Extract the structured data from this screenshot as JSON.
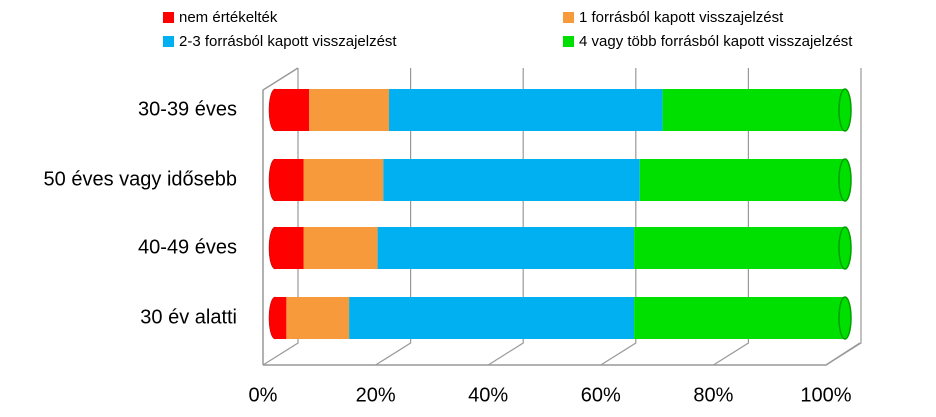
{
  "chart_data": {
    "type": "stacked-bar-horizontal",
    "categories": [
      "30-39 éves",
      "50 éves vagy idősebb",
      "40-49 éves",
      "30 év alatti"
    ],
    "series": [
      {
        "name": "nem értékelték",
        "color": "#ff0000",
        "values": [
          6,
          5,
          5,
          2
        ]
      },
      {
        "name": "1 forrásból kapott visszajelzést",
        "color": "#f79a3c",
        "values": [
          14,
          14,
          13,
          11
        ]
      },
      {
        "name": "2-3 forrásból kapott visszajelzést",
        "color": "#00b0f0",
        "values": [
          48,
          45,
          45,
          50
        ]
      },
      {
        "name": "4 vagy több forrásból kapott visszajelzést",
        "color": "#00e000",
        "values": [
          32,
          36,
          37,
          37
        ]
      }
    ],
    "xlim": [
      0,
      100
    ],
    "xticks": [
      {
        "value": 0,
        "label": "0%"
      },
      {
        "value": 20,
        "label": "20%"
      },
      {
        "value": 40,
        "label": "40%"
      },
      {
        "value": 60,
        "label": "60%"
      },
      {
        "value": 80,
        "label": "80%"
      },
      {
        "value": 100,
        "label": "100%"
      }
    ],
    "grid": true
  }
}
